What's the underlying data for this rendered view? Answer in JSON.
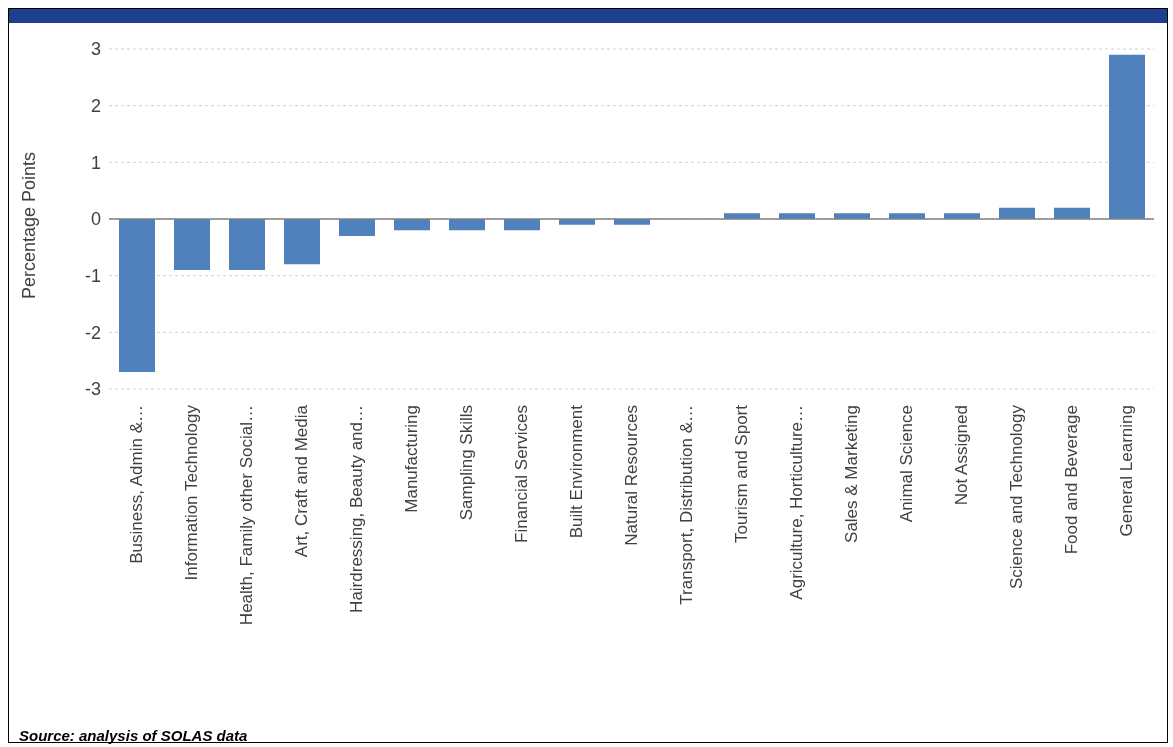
{
  "chart_data": {
    "type": "bar",
    "ylabel": "Percentage Points",
    "categories": [
      "Business, Admin &…",
      "Information Technology",
      "Health, Family other Social…",
      "Art, Craft and Media",
      "Hairdressing, Beauty and…",
      "Manufacturing",
      "Sampling Skills",
      "Financial Services",
      "Built Environment",
      "Natural Resources",
      "Transport, Distribution &…",
      "Tourism and Sport",
      "Agriculture, Horticulture…",
      "Sales & Marketing",
      "Animal Science",
      "Not Assigned",
      "Science and Technology",
      "Food and Beverage",
      "General Learning"
    ],
    "values": [
      -2.7,
      -0.9,
      -0.9,
      -0.8,
      -0.3,
      -0.2,
      -0.2,
      -0.2,
      -0.1,
      -0.1,
      0,
      0.1,
      0.1,
      0.1,
      0.1,
      0.1,
      0.2,
      0.2,
      2.9
    ],
    "color": "#4f81bd",
    "ylim": [
      -3,
      3
    ],
    "yticks": [
      -3,
      -2,
      -1,
      0,
      1,
      2,
      3
    ],
    "grid": "y",
    "legend": false,
    "annotations": [
      "Source: analysis of SOLAS data"
    ]
  }
}
